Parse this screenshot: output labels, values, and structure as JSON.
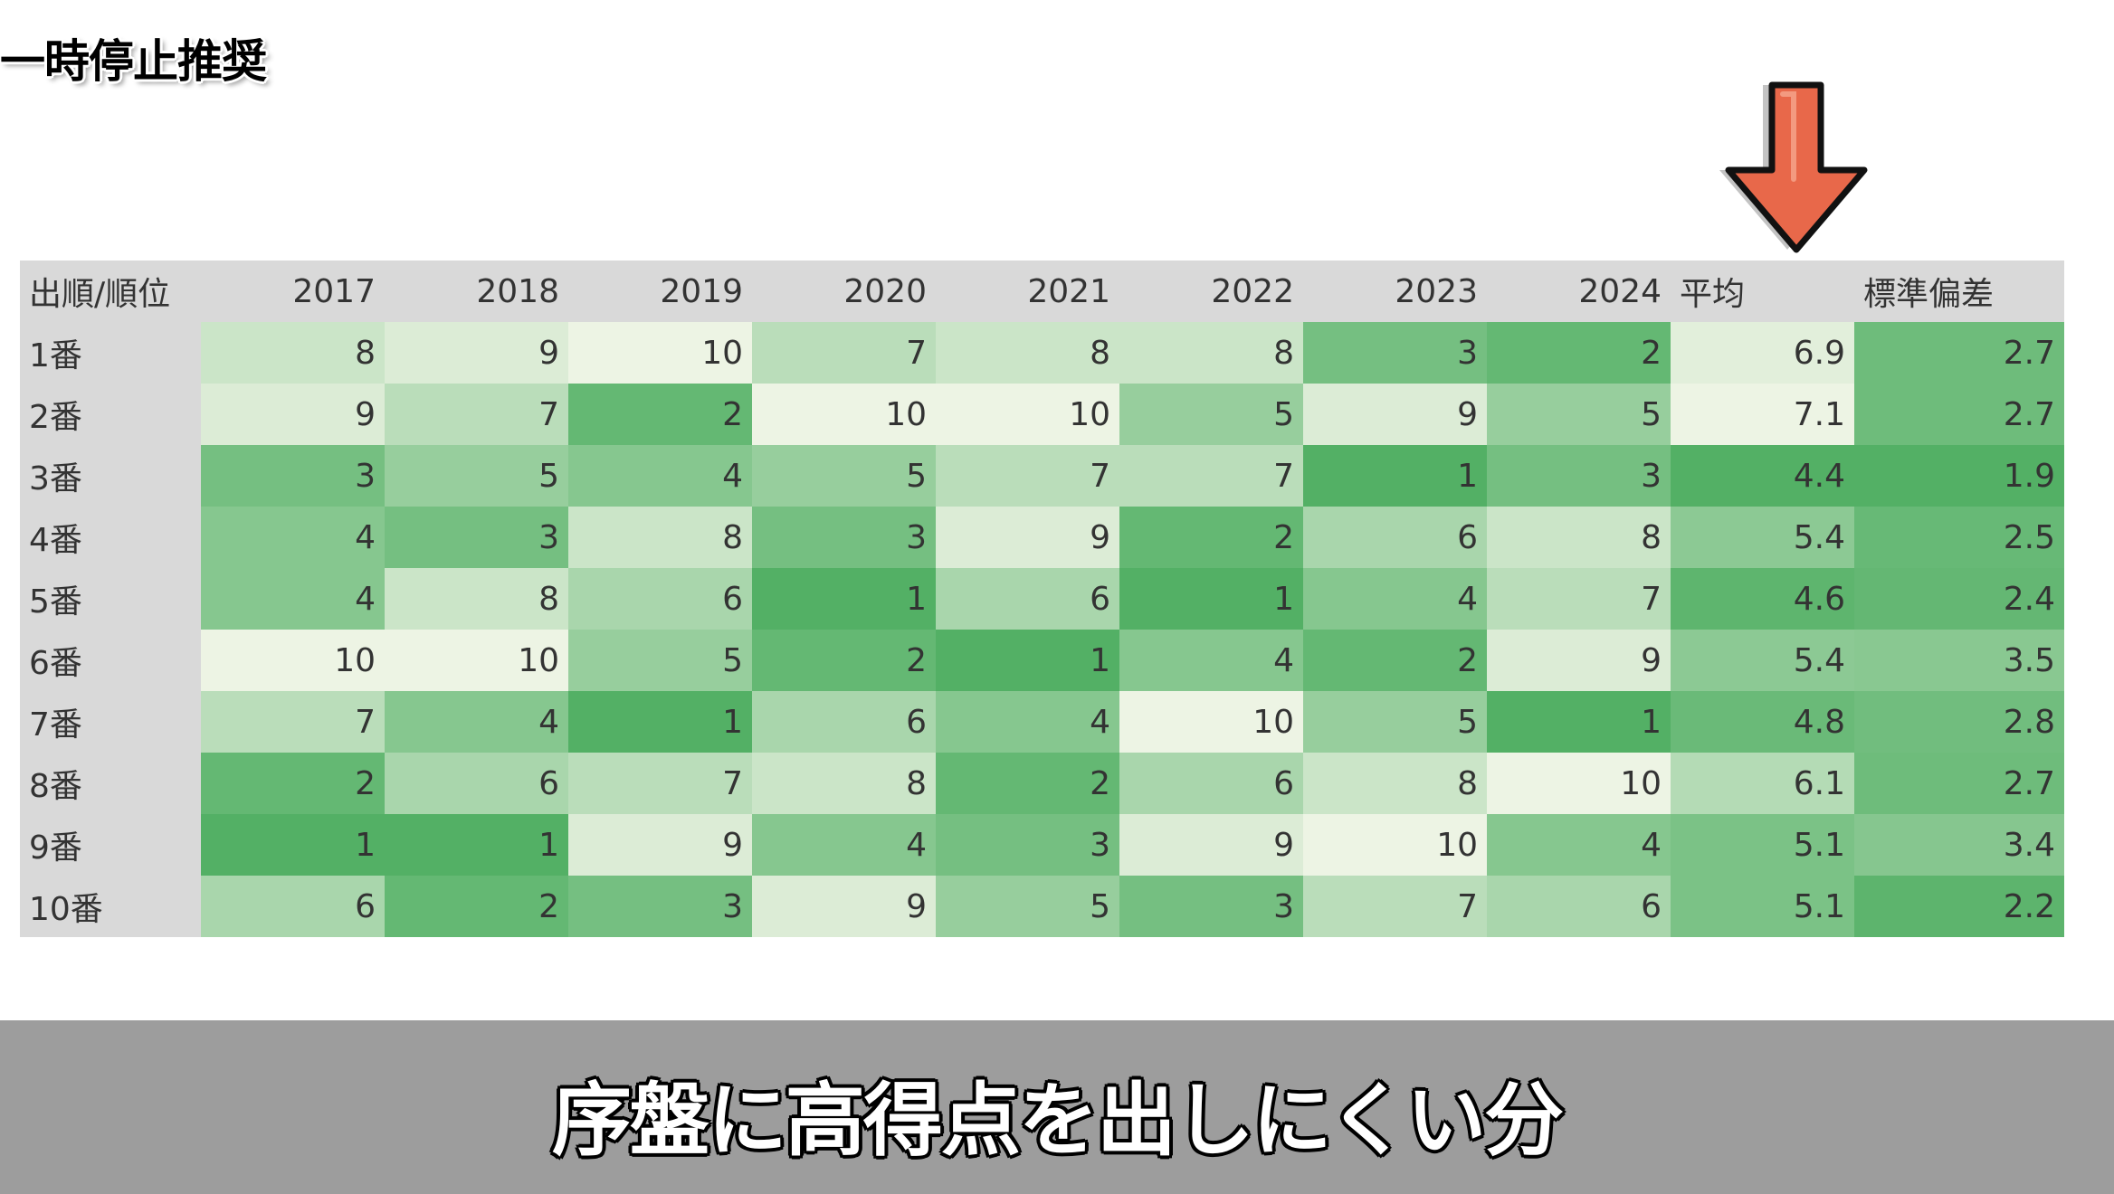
{
  "pause_label": "一時停止推奨",
  "subtitle": "序盤に高得点を出しにくい分",
  "table": {
    "corner_header": "出順/順位",
    "year_headers": [
      "2017",
      "2018",
      "2019",
      "2020",
      "2021",
      "2022",
      "2023",
      "2024"
    ],
    "avg_header": "平均",
    "std_header": "標準偏差",
    "rows": [
      {
        "label": "1番",
        "ranks": [
          8,
          9,
          10,
          7,
          8,
          8,
          3,
          2
        ],
        "avg": "6.9",
        "std": "2.7"
      },
      {
        "label": "2番",
        "ranks": [
          9,
          7,
          2,
          10,
          10,
          5,
          9,
          5
        ],
        "avg": "7.1",
        "std": "2.7"
      },
      {
        "label": "3番",
        "ranks": [
          3,
          5,
          4,
          5,
          7,
          7,
          1,
          3
        ],
        "avg": "4.4",
        "std": "1.9"
      },
      {
        "label": "4番",
        "ranks": [
          4,
          3,
          8,
          3,
          9,
          2,
          6,
          8
        ],
        "avg": "5.4",
        "std": "2.5"
      },
      {
        "label": "5番",
        "ranks": [
          4,
          8,
          6,
          1,
          6,
          1,
          4,
          7
        ],
        "avg": "4.6",
        "std": "2.4"
      },
      {
        "label": "6番",
        "ranks": [
          10,
          10,
          5,
          2,
          1,
          4,
          2,
          9
        ],
        "avg": "5.4",
        "std": "3.5"
      },
      {
        "label": "7番",
        "ranks": [
          7,
          4,
          1,
          6,
          4,
          10,
          5,
          1
        ],
        "avg": "4.8",
        "std": "2.8"
      },
      {
        "label": "8番",
        "ranks": [
          2,
          6,
          7,
          8,
          2,
          6,
          8,
          10
        ],
        "avg": "6.1",
        "std": "2.7"
      },
      {
        "label": "9番",
        "ranks": [
          1,
          1,
          9,
          4,
          3,
          9,
          10,
          4
        ],
        "avg": "5.1",
        "std": "3.4"
      },
      {
        "label": "10番",
        "ranks": [
          6,
          2,
          3,
          9,
          5,
          3,
          7,
          6
        ],
        "avg": "5.1",
        "std": "2.2"
      }
    ]
  },
  "colors": {
    "header_bg": "#d9d9d9",
    "heat_low": "#53b065",
    "heat_high": "#edf4e4",
    "arrow_fill": "#e8684a",
    "bottom_bar": "#9d9d9d"
  },
  "icons": {
    "arrow": "down-arrow-icon"
  }
}
